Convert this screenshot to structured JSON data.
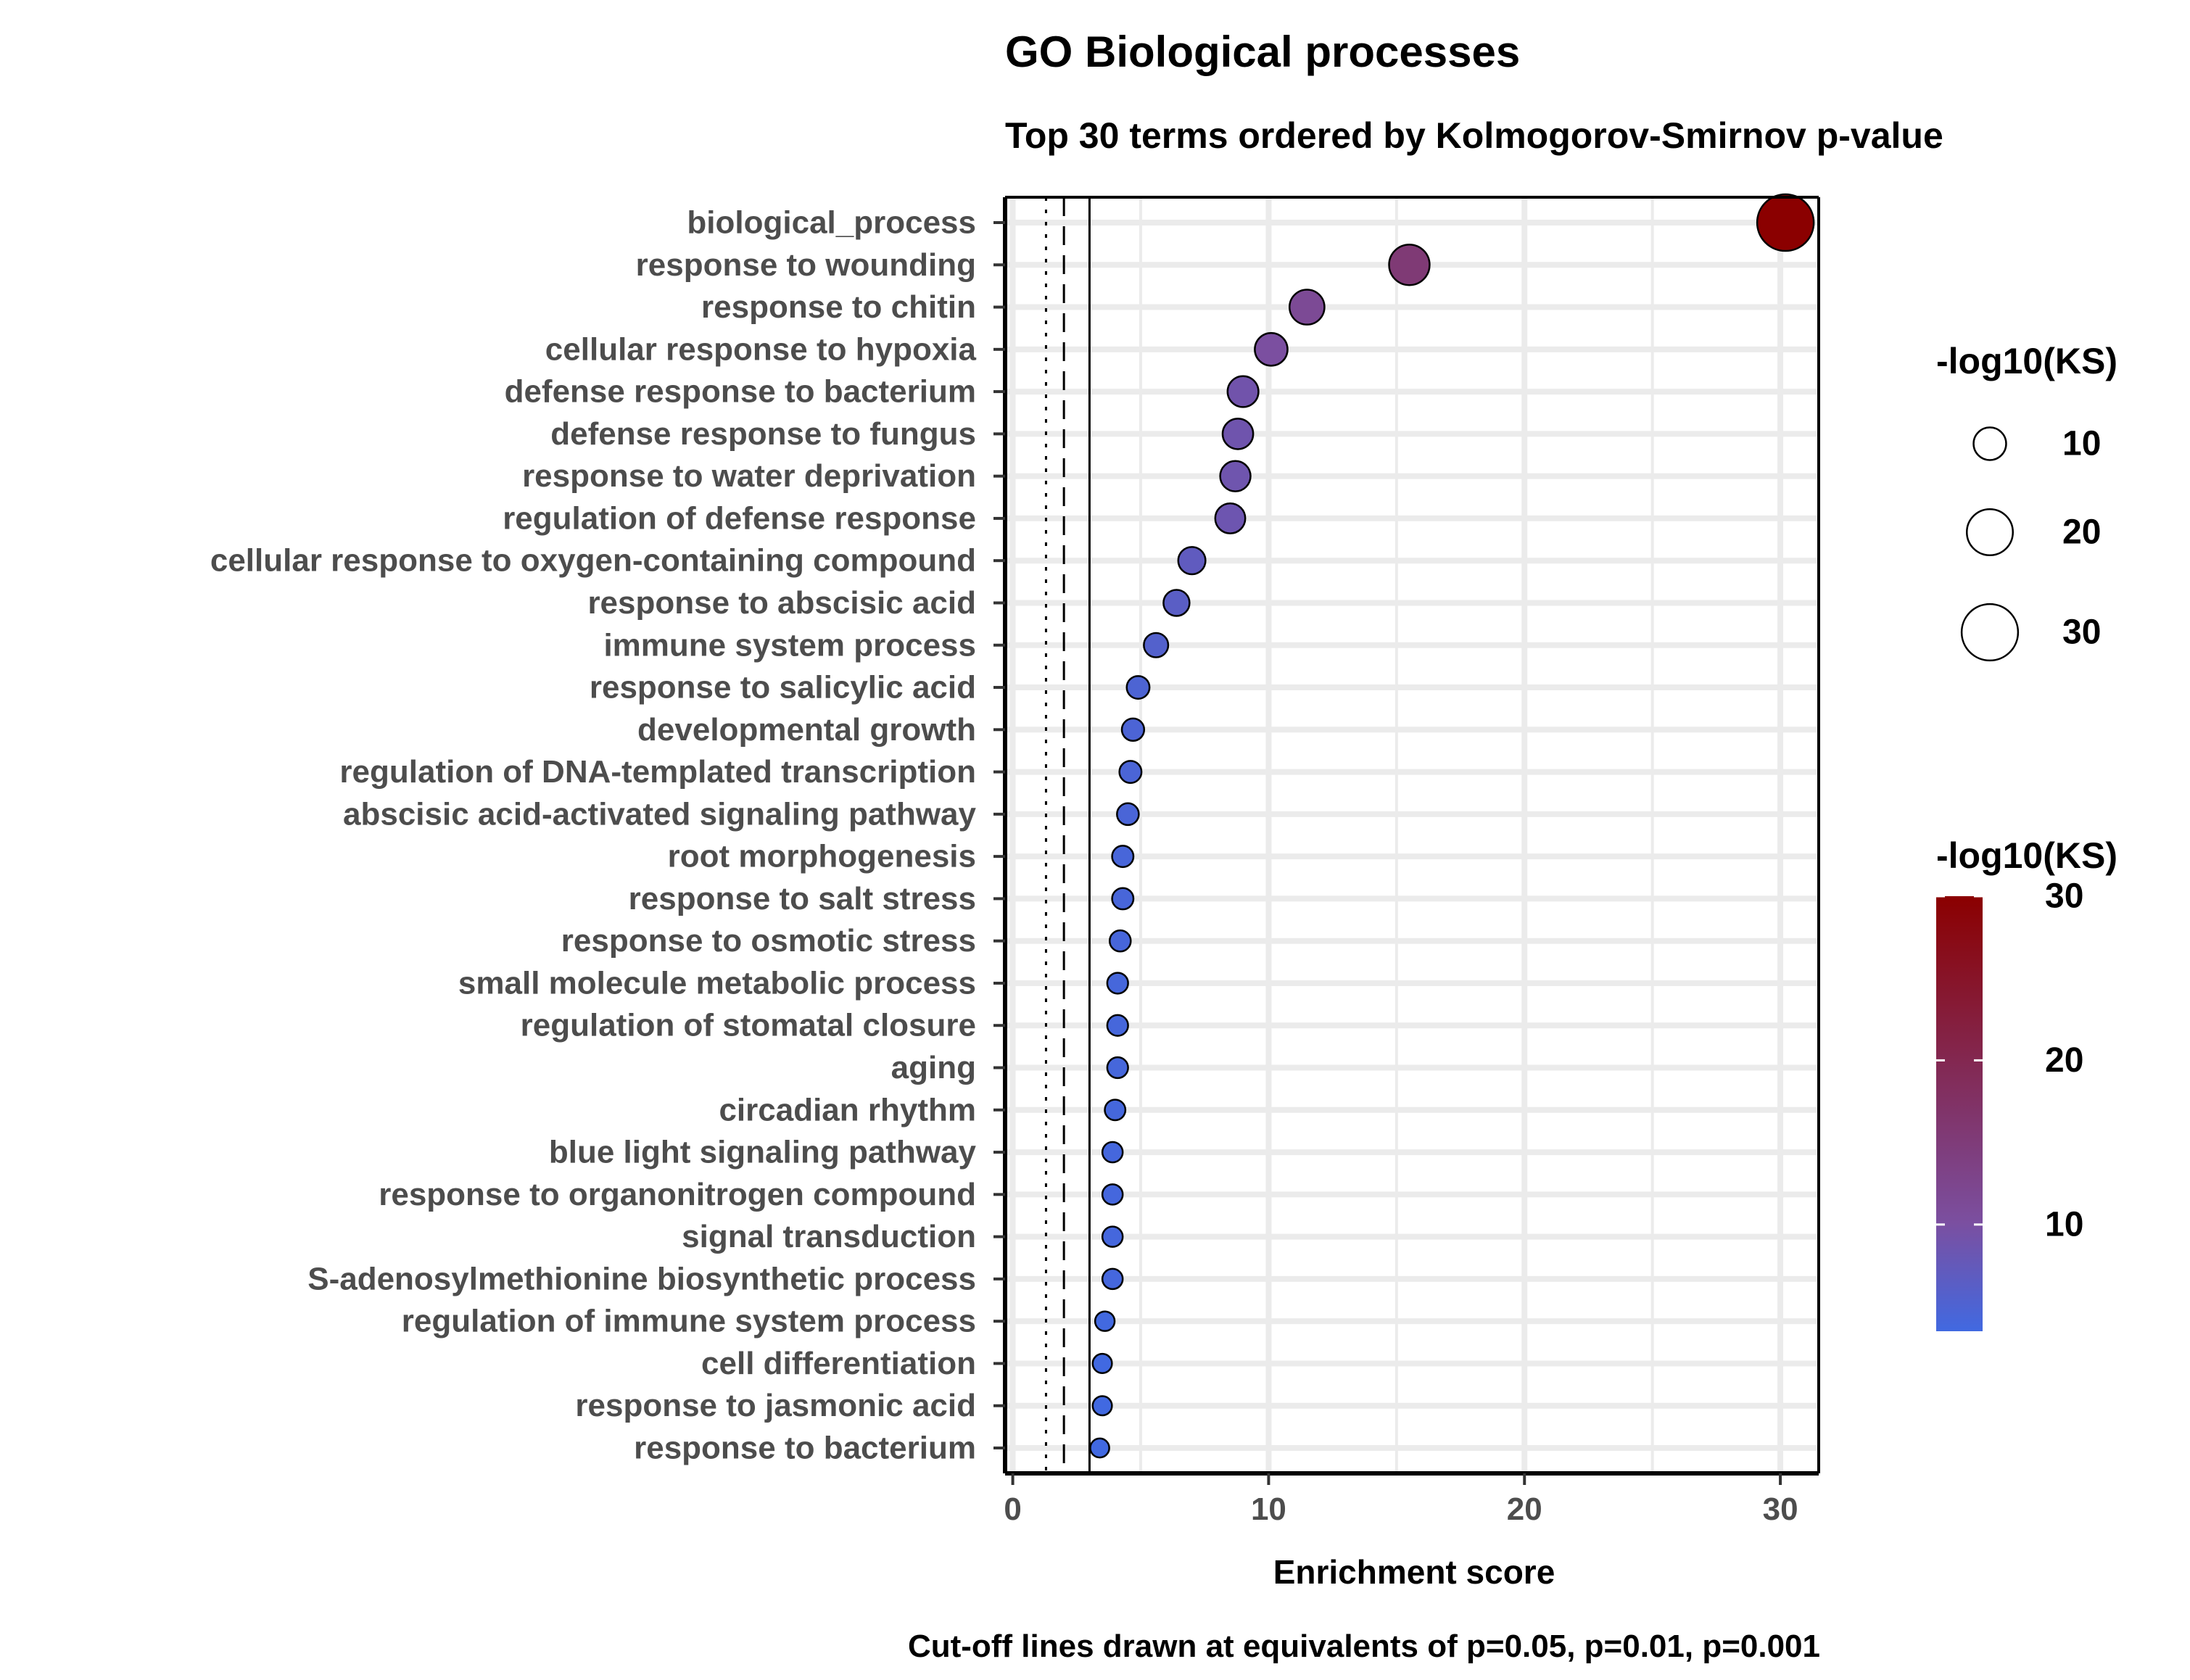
{
  "chart_data": {
    "type": "scatter",
    "title": "GO Biological processes",
    "subtitle": "Top 30 terms ordered by Kolmogorov-Smirnov p-value",
    "xlabel": "Enrichment score",
    "ylabel": "",
    "caption": "Cut-off lines drawn at equivalents of p=0.05, p=0.01, p=0.001",
    "xlim": [
      -0.3,
      31.5
    ],
    "x_ticks": [
      0,
      10,
      20,
      30
    ],
    "grid": true,
    "cutoff_lines": [
      1.3,
      2,
      3
    ],
    "colors": {
      "low": "#4169E1",
      "mid": "#7B4FA0",
      "high": "#8B0000"
    },
    "size_legend": {
      "title": "-log10(KS)",
      "values": [
        10,
        20,
        30
      ]
    },
    "color_legend": {
      "title": "-log10(KS)",
      "ticks": [
        10,
        20,
        30
      ],
      "range": [
        3.5,
        30
      ]
    },
    "terms": [
      "biological_process",
      "response to wounding",
      "response to chitin",
      "cellular response to hypoxia",
      "defense response to bacterium",
      "defense response to fungus",
      "response to water deprivation",
      "regulation of defense response",
      "cellular response to oxygen-containing compound",
      "response to abscisic acid",
      "immune system process",
      "response to salicylic acid",
      "developmental growth",
      "regulation of DNA-templated transcription",
      "abscisic acid-activated signaling pathway",
      "root morphogenesis",
      "response to salt stress",
      "response to osmotic stress",
      "small molecule metabolic process",
      "regulation of stomatal closure",
      "aging",
      "circadian rhythm",
      "blue light signaling pathway",
      "response to organonitrogen compound",
      "signal transduction",
      "S-adenosylmethionine biosynthetic process",
      "regulation of immune system process",
      "cell differentiation",
      "response to jasmonic acid",
      "response to bacterium"
    ],
    "x": [
      30.2,
      15.5,
      11.5,
      10.1,
      9.0,
      8.8,
      8.7,
      8.5,
      7.0,
      6.4,
      5.6,
      4.9,
      4.7,
      4.6,
      4.5,
      4.3,
      4.3,
      4.2,
      4.1,
      4.1,
      4.1,
      4.0,
      3.9,
      3.9,
      3.9,
      3.9,
      3.6,
      3.5,
      3.5,
      3.4
    ],
    "neg_log10_ks": [
      30.2,
      15.5,
      11.5,
      10.1,
      9.0,
      8.8,
      8.7,
      8.5,
      7.0,
      6.4,
      5.6,
      4.9,
      4.7,
      4.6,
      4.5,
      4.3,
      4.3,
      4.2,
      4.1,
      4.1,
      4.1,
      4.0,
      3.9,
      3.9,
      3.9,
      3.9,
      3.6,
      3.5,
      3.5,
      3.4
    ]
  }
}
